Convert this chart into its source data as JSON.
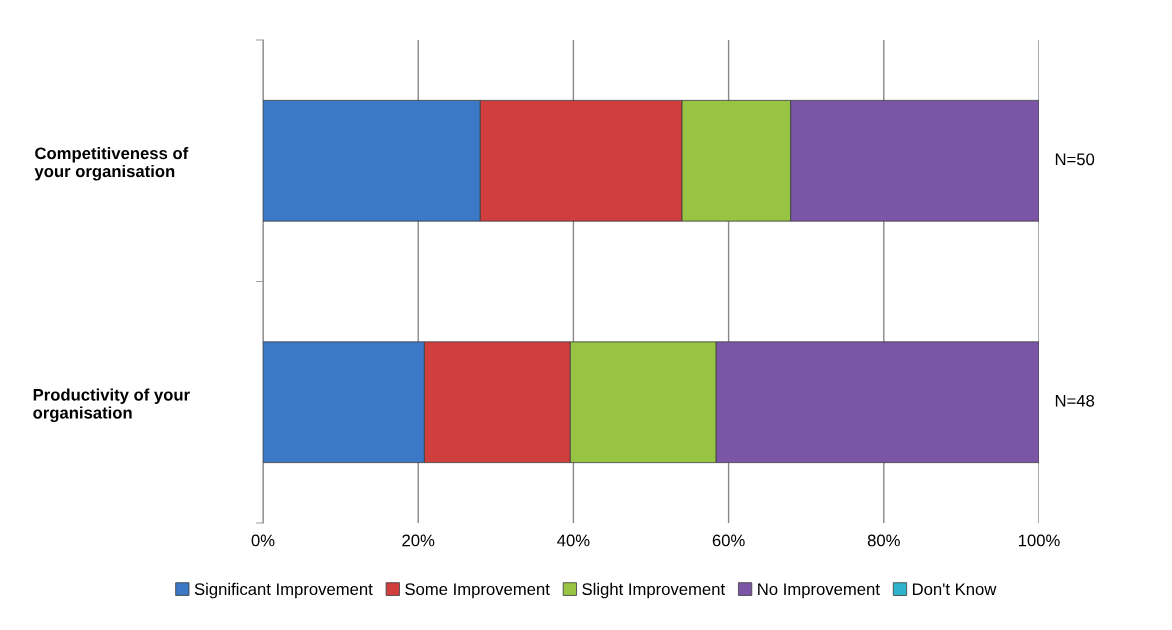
{
  "chart_data": {
    "type": "bar",
    "orientation": "horizontal",
    "stacked": true,
    "categories": [
      "Competitiveness of\nyour organisation",
      "Productivity of your\norganisation"
    ],
    "series": [
      {
        "name": "Significant Improvement",
        "color": "#3b78c6",
        "values": [
          28,
          20.8
        ]
      },
      {
        "name": "Some Improvement",
        "color": "#d03e3e",
        "values": [
          26,
          18.8
        ]
      },
      {
        "name": "Slight Improvement",
        "color": "#98c444",
        "values": [
          14,
          18.8
        ]
      },
      {
        "name": "No Improvement",
        "color": "#7b56a6",
        "values": [
          32,
          41.6
        ]
      },
      {
        "name": "Don't Know",
        "color": "#2db3cb",
        "values": [
          0,
          0
        ]
      }
    ],
    "xlim": [
      0,
      100
    ],
    "xticks": [
      {
        "value": 0,
        "label": "0%"
      },
      {
        "value": 20,
        "label": "20%"
      },
      {
        "value": 40,
        "label": "40%"
      },
      {
        "value": 60,
        "label": "60%"
      },
      {
        "value": 80,
        "label": "80%"
      },
      {
        "value": 100,
        "label": "100%"
      }
    ],
    "value_labels": [
      "N=50",
      "N=48"
    ],
    "grid": "x",
    "legend": "bottom"
  }
}
